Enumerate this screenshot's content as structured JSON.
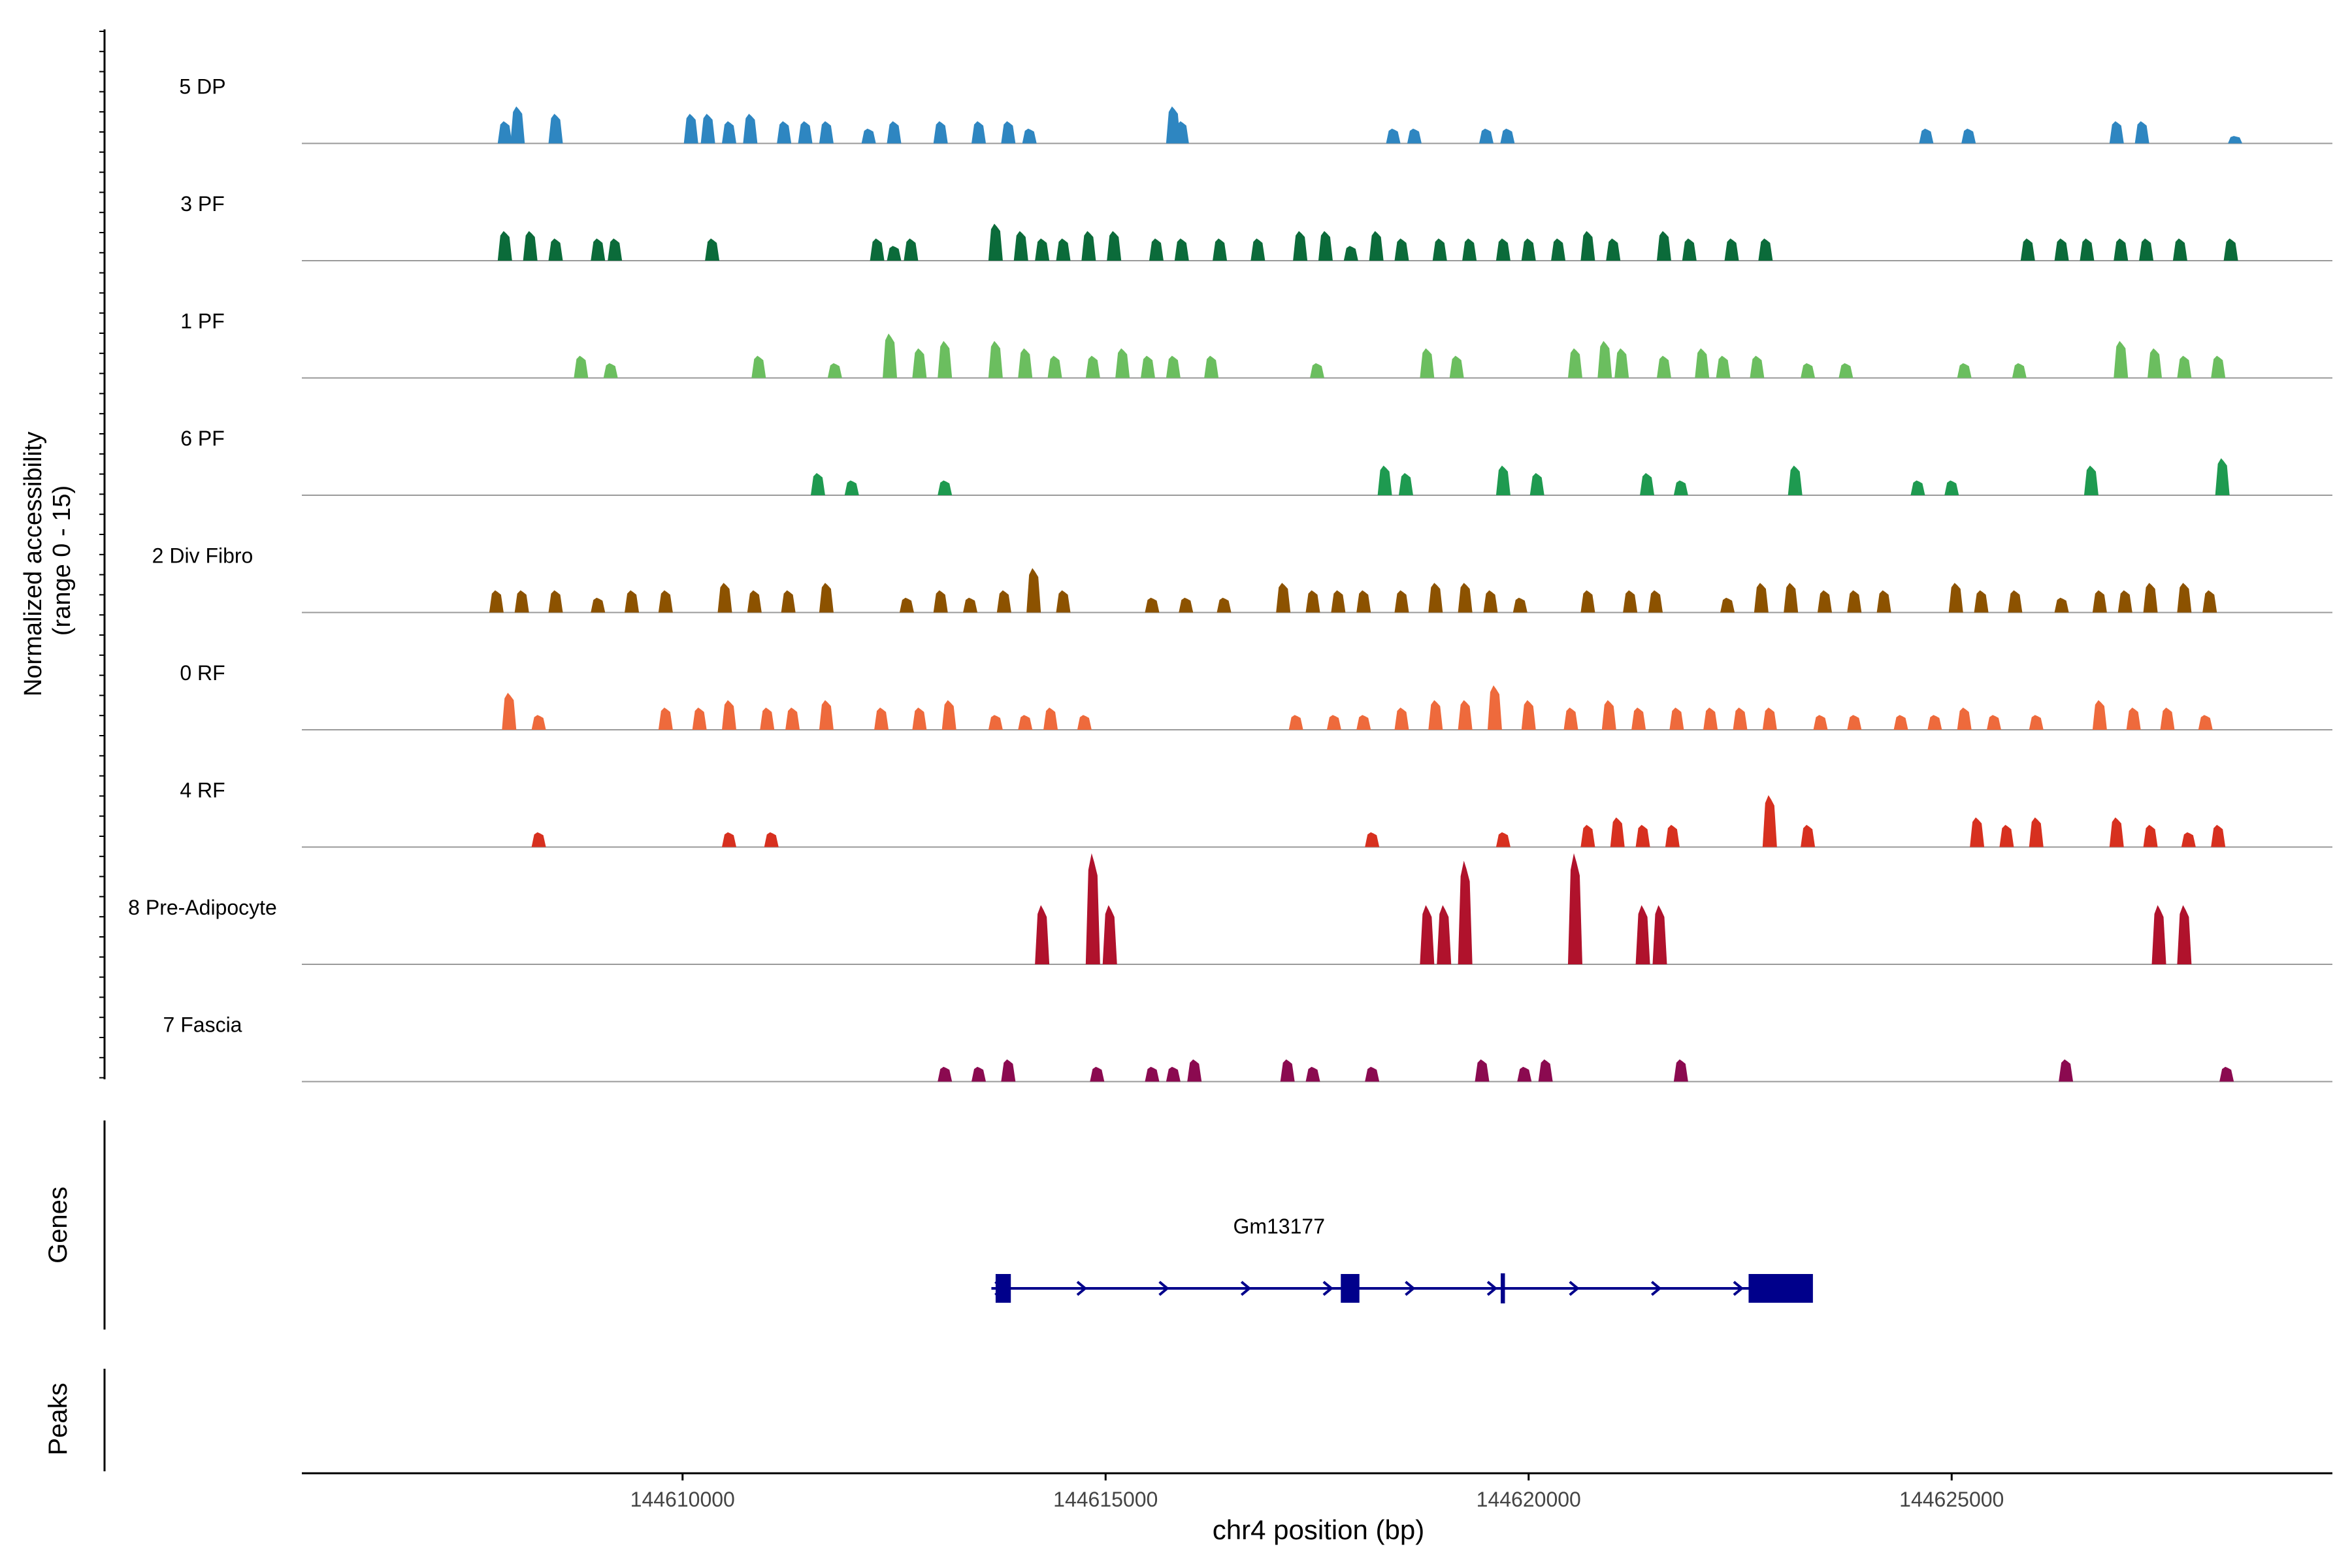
{
  "chart_data": {
    "type": "area",
    "genomic_range": [
      144605500,
      144629500
    ],
    "y_axis_label_line1": "Normalized accessibility",
    "y_axis_label_line2": "(range 0 - 15)",
    "y_range": [
      0,
      15
    ],
    "x_axis_label": "chr4 position (bp)",
    "x_ticks": [
      {
        "value": 144610000,
        "label": "144610000"
      },
      {
        "value": 144615000,
        "label": "144615000"
      },
      {
        "value": 144620000,
        "label": "144620000"
      },
      {
        "value": 144625000,
        "label": "144625000"
      }
    ],
    "tracks": [
      {
        "name": "5 DP",
        "color": "#2E86C1",
        "peaks": [
          [
            144607900,
            3
          ],
          [
            144608050,
            5
          ],
          [
            144608500,
            4
          ],
          [
            144610100,
            4
          ],
          [
            144610300,
            4
          ],
          [
            144610550,
            3
          ],
          [
            144610800,
            4
          ],
          [
            144611200,
            3
          ],
          [
            144611450,
            3
          ],
          [
            144611700,
            3
          ],
          [
            144612200,
            2
          ],
          [
            144612500,
            3
          ],
          [
            144613050,
            3
          ],
          [
            144613500,
            3
          ],
          [
            144613850,
            3
          ],
          [
            144614100,
            2
          ],
          [
            144615800,
            5
          ],
          [
            144615900,
            3
          ],
          [
            144618400,
            2
          ],
          [
            144618650,
            2
          ],
          [
            144619500,
            2
          ],
          [
            144619750,
            2
          ],
          [
            144624700,
            2
          ],
          [
            144625200,
            2
          ],
          [
            144626950,
            3
          ],
          [
            144627250,
            3
          ],
          [
            144628350,
            1
          ]
        ]
      },
      {
        "name": "3 PF",
        "color": "#0B6B3A",
        "peaks": [
          [
            144607900,
            4
          ],
          [
            144608200,
            4
          ],
          [
            144608500,
            3
          ],
          [
            144609000,
            3
          ],
          [
            144609200,
            3
          ],
          [
            144610350,
            3
          ],
          [
            144612300,
            3
          ],
          [
            144612500,
            2
          ],
          [
            144612700,
            3
          ],
          [
            144613700,
            5
          ],
          [
            144614000,
            4
          ],
          [
            144614250,
            3
          ],
          [
            144614500,
            3
          ],
          [
            144614800,
            4
          ],
          [
            144615100,
            4
          ],
          [
            144615600,
            3
          ],
          [
            144615900,
            3
          ],
          [
            144616350,
            3
          ],
          [
            144616800,
            3
          ],
          [
            144617300,
            4
          ],
          [
            144617600,
            4
          ],
          [
            144617900,
            2
          ],
          [
            144618200,
            4
          ],
          [
            144618500,
            3
          ],
          [
            144618950,
            3
          ],
          [
            144619300,
            3
          ],
          [
            144619700,
            3
          ],
          [
            144620000,
            3
          ],
          [
            144620350,
            3
          ],
          [
            144620700,
            4
          ],
          [
            144621000,
            3
          ],
          [
            144621600,
            4
          ],
          [
            144621900,
            3
          ],
          [
            144622400,
            3
          ],
          [
            144622800,
            3
          ],
          [
            144625900,
            3
          ],
          [
            144626300,
            3
          ],
          [
            144626600,
            3
          ],
          [
            144627000,
            3
          ],
          [
            144627300,
            3
          ],
          [
            144627700,
            3
          ],
          [
            144628300,
            3
          ]
        ]
      },
      {
        "name": "1 PF",
        "color": "#6BBE5F",
        "peaks": [
          [
            144608800,
            3
          ],
          [
            144609150,
            2
          ],
          [
            144610900,
            3
          ],
          [
            144611800,
            2
          ],
          [
            144612450,
            6
          ],
          [
            144612800,
            4
          ],
          [
            144613100,
            5
          ],
          [
            144613700,
            5
          ],
          [
            144614050,
            4
          ],
          [
            144614400,
            3
          ],
          [
            144614850,
            3
          ],
          [
            144615200,
            4
          ],
          [
            144615500,
            3
          ],
          [
            144615800,
            3
          ],
          [
            144616250,
            3
          ],
          [
            144617500,
            2
          ],
          [
            144618800,
            4
          ],
          [
            144619150,
            3
          ],
          [
            144620550,
            4
          ],
          [
            144620900,
            5
          ],
          [
            144621100,
            4
          ],
          [
            144621600,
            3
          ],
          [
            144622050,
            4
          ],
          [
            144622300,
            3
          ],
          [
            144622700,
            3
          ],
          [
            144623300,
            2
          ],
          [
            144623750,
            2
          ],
          [
            144625150,
            2
          ],
          [
            144625800,
            2
          ],
          [
            144627000,
            5
          ],
          [
            144627400,
            4
          ],
          [
            144627750,
            3
          ],
          [
            144628150,
            3
          ]
        ]
      },
      {
        "name": "6 PF",
        "color": "#1E9A50",
        "peaks": [
          [
            144611600,
            3
          ],
          [
            144612000,
            2
          ],
          [
            144613100,
            2
          ],
          [
            144618300,
            4
          ],
          [
            144618550,
            3
          ],
          [
            144619700,
            4
          ],
          [
            144620100,
            3
          ],
          [
            144621400,
            3
          ],
          [
            144621800,
            2
          ],
          [
            144623150,
            4
          ],
          [
            144624600,
            2
          ],
          [
            144625000,
            2
          ],
          [
            144626650,
            4
          ],
          [
            144628200,
            5
          ]
        ]
      },
      {
        "name": "2 Div Fibro",
        "color": "#8C5200",
        "peaks": [
          [
            144607800,
            3
          ],
          [
            144608100,
            3
          ],
          [
            144608500,
            3
          ],
          [
            144609000,
            2
          ],
          [
            144609400,
            3
          ],
          [
            144609800,
            3
          ],
          [
            144610500,
            4
          ],
          [
            144610850,
            3
          ],
          [
            144611250,
            3
          ],
          [
            144611700,
            4
          ],
          [
            144612650,
            2
          ],
          [
            144613050,
            3
          ],
          [
            144613400,
            2
          ],
          [
            144613800,
            3
          ],
          [
            144614150,
            6
          ],
          [
            144614500,
            3
          ],
          [
            144615550,
            2
          ],
          [
            144615950,
            2
          ],
          [
            144616400,
            2
          ],
          [
            144617100,
            4
          ],
          [
            144617450,
            3
          ],
          [
            144617750,
            3
          ],
          [
            144618050,
            3
          ],
          [
            144618500,
            3
          ],
          [
            144618900,
            4
          ],
          [
            144619250,
            4
          ],
          [
            144619550,
            3
          ],
          [
            144619900,
            2
          ],
          [
            144620700,
            3
          ],
          [
            144621200,
            3
          ],
          [
            144621500,
            3
          ],
          [
            144622350,
            2
          ],
          [
            144622750,
            4
          ],
          [
            144623100,
            4
          ],
          [
            144623500,
            3
          ],
          [
            144623850,
            3
          ],
          [
            144624200,
            3
          ],
          [
            144625050,
            4
          ],
          [
            144625350,
            3
          ],
          [
            144625750,
            3
          ],
          [
            144626300,
            2
          ],
          [
            144626750,
            3
          ],
          [
            144627050,
            3
          ],
          [
            144627350,
            4
          ],
          [
            144627750,
            4
          ],
          [
            144628050,
            3
          ]
        ]
      },
      {
        "name": "0 RF",
        "color": "#EE6A3C",
        "peaks": [
          [
            144607950,
            5
          ],
          [
            144608300,
            2
          ],
          [
            144609800,
            3
          ],
          [
            144610200,
            3
          ],
          [
            144610550,
            4
          ],
          [
            144611000,
            3
          ],
          [
            144611300,
            3
          ],
          [
            144611700,
            4
          ],
          [
            144612350,
            3
          ],
          [
            144612800,
            3
          ],
          [
            144613150,
            4
          ],
          [
            144613700,
            2
          ],
          [
            144614050,
            2
          ],
          [
            144614350,
            3
          ],
          [
            144614750,
            2
          ],
          [
            144617250,
            2
          ],
          [
            144617700,
            2
          ],
          [
            144618050,
            2
          ],
          [
            144618500,
            3
          ],
          [
            144618900,
            4
          ],
          [
            144619250,
            4
          ],
          [
            144619600,
            6
          ],
          [
            144620000,
            4
          ],
          [
            144620500,
            3
          ],
          [
            144620950,
            4
          ],
          [
            144621300,
            3
          ],
          [
            144621750,
            3
          ],
          [
            144622150,
            3
          ],
          [
            144622500,
            3
          ],
          [
            144622850,
            3
          ],
          [
            144623450,
            2
          ],
          [
            144623850,
            2
          ],
          [
            144624400,
            2
          ],
          [
            144624800,
            2
          ],
          [
            144625150,
            3
          ],
          [
            144625500,
            2
          ],
          [
            144626000,
            2
          ],
          [
            144626750,
            4
          ],
          [
            144627150,
            3
          ],
          [
            144627550,
            3
          ],
          [
            144628000,
            2
          ]
        ]
      },
      {
        "name": "4 RF",
        "color": "#D7301F",
        "peaks": [
          [
            144608300,
            2
          ],
          [
            144610550,
            2
          ],
          [
            144611050,
            2
          ],
          [
            144618150,
            2
          ],
          [
            144619700,
            2
          ],
          [
            144620700,
            3
          ],
          [
            144621050,
            4
          ],
          [
            144621350,
            3
          ],
          [
            144621700,
            3
          ],
          [
            144622850,
            7
          ],
          [
            144623300,
            3
          ],
          [
            144625300,
            4
          ],
          [
            144625650,
            3
          ],
          [
            144626000,
            4
          ],
          [
            144626950,
            4
          ],
          [
            144627350,
            3
          ],
          [
            144627800,
            2
          ],
          [
            144628150,
            3
          ]
        ]
      },
      {
        "name": "8 Pre-Adipocyte",
        "color": "#B0122C",
        "peaks": [
          [
            144614250,
            8
          ],
          [
            144614850,
            15
          ],
          [
            144615050,
            8
          ],
          [
            144618800,
            8
          ],
          [
            144619000,
            8
          ],
          [
            144619250,
            14
          ],
          [
            144620550,
            15
          ],
          [
            144621350,
            8
          ],
          [
            144621550,
            8
          ],
          [
            144627450,
            8
          ],
          [
            144627750,
            8
          ]
        ]
      },
      {
        "name": "7 Fascia",
        "color": "#8B0A50",
        "peaks": [
          [
            144613100,
            2
          ],
          [
            144613500,
            2
          ],
          [
            144613850,
            3
          ],
          [
            144614900,
            2
          ],
          [
            144615550,
            2
          ],
          [
            144615800,
            2
          ],
          [
            144616050,
            3
          ],
          [
            144617150,
            3
          ],
          [
            144617450,
            2
          ],
          [
            144618150,
            2
          ],
          [
            144619450,
            3
          ],
          [
            144619950,
            2
          ],
          [
            144620200,
            3
          ],
          [
            144621800,
            3
          ],
          [
            144626350,
            3
          ],
          [
            144628250,
            2
          ]
        ]
      }
    ],
    "gene_panel_label": "Genes",
    "gene": {
      "name": "Gm13177",
      "start": 144613650,
      "end": 144623350,
      "strand": "+",
      "color": "#00008B",
      "exons": [
        [
          144613700,
          144613880
        ],
        [
          144617780,
          144618000
        ],
        [
          144619670,
          144619720
        ],
        [
          144622600,
          144623360
        ]
      ]
    },
    "peaks_panel_label": "Peaks"
  }
}
